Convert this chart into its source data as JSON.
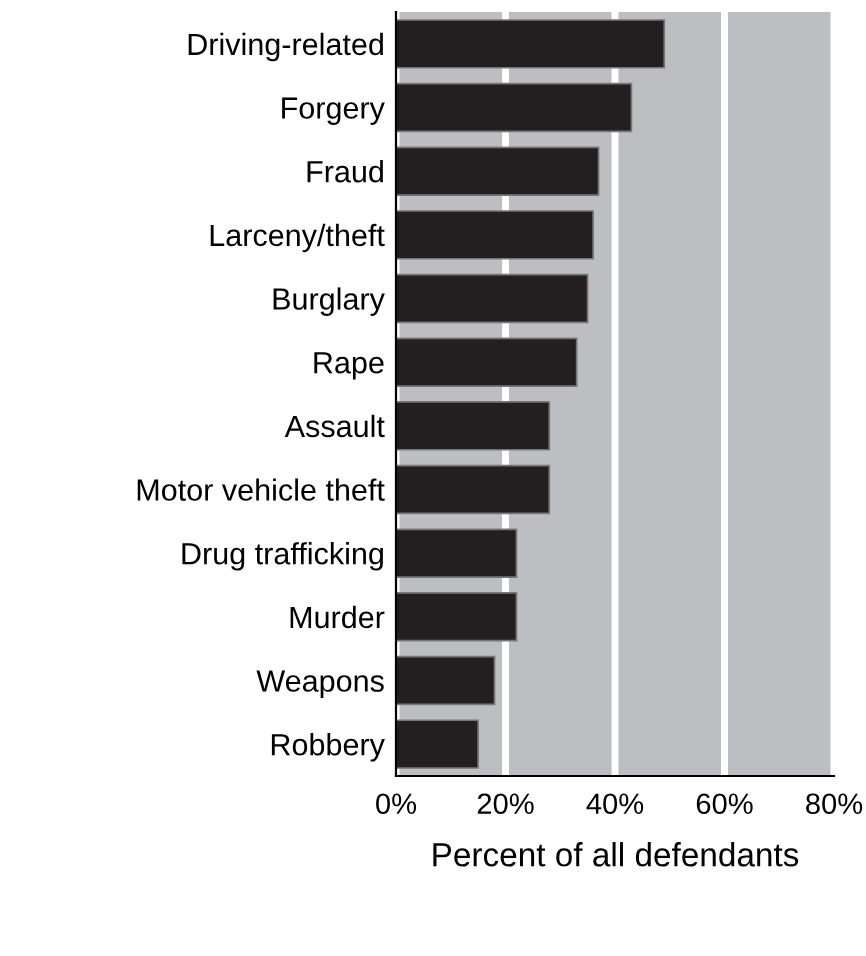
{
  "chart_data": {
    "type": "bar",
    "orientation": "horizontal",
    "xlabel": "Percent of all defendants",
    "categories": [
      "Driving-related",
      "Forgery",
      "Fraud",
      "Larceny/theft",
      "Burglary",
      "Rape",
      "Assault",
      "Motor vehicle theft",
      "Drug trafficking",
      "Murder",
      "Weapons",
      "Robbery"
    ],
    "values": [
      49,
      43,
      37,
      36,
      35,
      33,
      28,
      28,
      22,
      22,
      18,
      15
    ],
    "color": "#231f20",
    "xlim": [
      0,
      80
    ],
    "xticks": [
      {
        "value": 0,
        "label": "0%"
      },
      {
        "value": 20,
        "label": "20%"
      },
      {
        "value": 40,
        "label": "40%"
      },
      {
        "value": 60,
        "label": "60%"
      },
      {
        "value": 80,
        "label": "80%"
      }
    ],
    "grid": "x"
  }
}
